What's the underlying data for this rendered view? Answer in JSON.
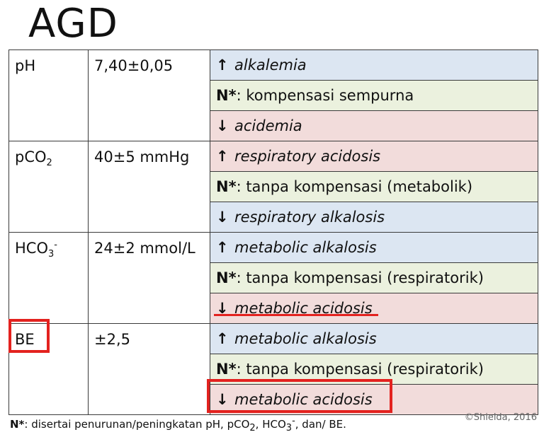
{
  "title": "AGD",
  "rows": [
    {
      "param": "pH",
      "normal": "7,40±0,05",
      "interp": [
        {
          "arrow": "↑",
          "text": "alkalemia"
        },
        {
          "prefix": "N*",
          "text": ": kompensasi sempurna"
        },
        {
          "arrow": "↓",
          "text": "acidemia"
        }
      ]
    },
    {
      "param_main": "pCO",
      "param_sub": "2",
      "normal": "40±5 mmHg",
      "interp": [
        {
          "arrow": "↑",
          "text": "respiratory acidosis"
        },
        {
          "prefix": "N*",
          "text": ": tanpa kompensasi (metabolik)"
        },
        {
          "arrow": "↓",
          "text": "respiratory alkalosis"
        }
      ]
    },
    {
      "param_main": "HCO",
      "param_sub": "3",
      "param_sup": "-",
      "normal": "24±2 mmol/L",
      "interp": [
        {
          "arrow": "↑",
          "text": "metabolic alkalosis"
        },
        {
          "prefix": "N*",
          "text": ": tanpa kompensasi (respiratorik)"
        },
        {
          "arrow": "↓",
          "text": "metabolic acidosis"
        }
      ]
    },
    {
      "param": "BE",
      "normal": "±2,5",
      "interp": [
        {
          "arrow": "↑",
          "text": "metabolic alkalosis"
        },
        {
          "prefix": "N*",
          "text": ": tanpa kompensasi (respiratorik)"
        },
        {
          "arrow": "↓",
          "text": "metabolic acidosis"
        }
      ]
    }
  ],
  "footnote": {
    "prefix": "N*",
    "t1": ": disertai penurunan/peningkatan pH, pCO",
    "sub1": "2",
    "t2": ", HCO",
    "sub2": "3",
    "sup2": "-",
    "t3": ", dan/ BE."
  },
  "copyright": "©Shielda, 2016",
  "colors": {
    "increase_row": "#dce6f2",
    "compensation_row": "#ebf1de",
    "decrease_row": "#f2dcdb",
    "highlight": "#e3221f"
  }
}
